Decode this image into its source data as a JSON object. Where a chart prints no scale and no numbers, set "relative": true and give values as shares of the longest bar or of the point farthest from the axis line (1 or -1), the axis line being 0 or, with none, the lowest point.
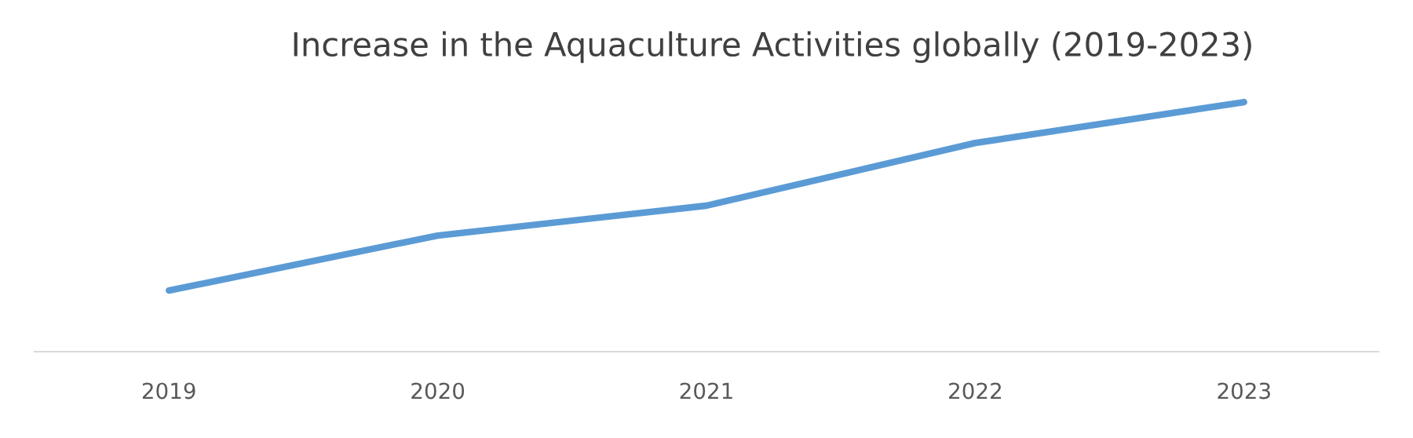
{
  "chart_data": {
    "type": "line",
    "title": "Increase in the Aquaculture Activities globally (2019-2023)",
    "categories": [
      "2019",
      "2020",
      "2021",
      "2022",
      "2023"
    ],
    "relative": true,
    "series": [
      {
        "color": "#5b9bd5",
        "values": [
          0.245,
          0.465,
          0.585,
          0.836,
          1
        ]
      }
    ],
    "grid": false,
    "legend": false,
    "marker": "none",
    "line_style": "solid"
  }
}
